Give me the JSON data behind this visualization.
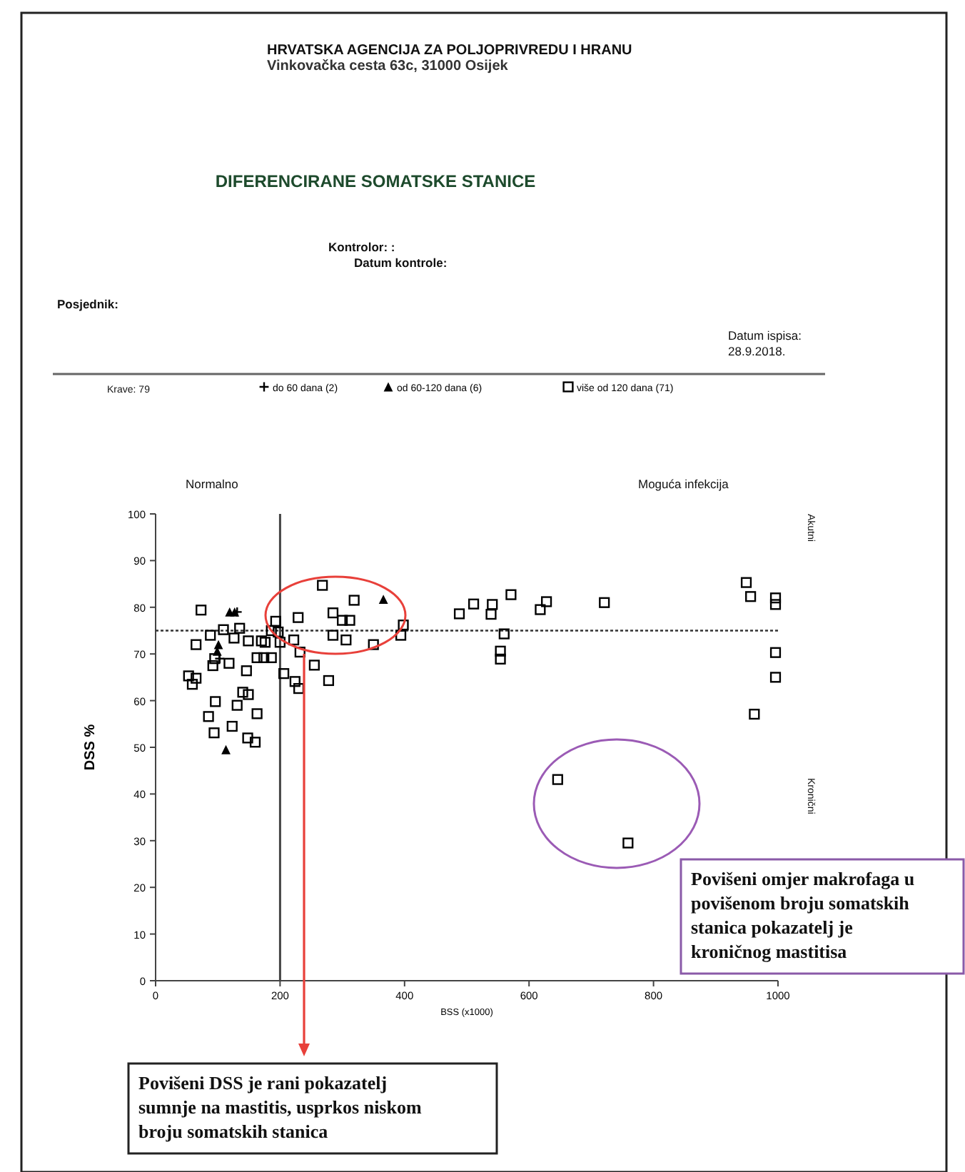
{
  "chart_data": {
    "type": "scatter",
    "title": "DIFERENCIRANE SOMATSKE STANICE",
    "xlabel": "BSS (x1000)",
    "ylabel": "DSS %",
    "xlim": [
      0,
      1000
    ],
    "xticks": [
      0,
      200,
      400,
      600,
      800,
      1000
    ],
    "ylim": [
      0,
      100
    ],
    "yticks": [
      0,
      10,
      20,
      30,
      40,
      50,
      60,
      70,
      80,
      90,
      100
    ],
    "grid": false,
    "legend": "top",
    "series": [
      {
        "name": "do 60 dana (2)",
        "color": "#000000",
        "marker": "cross",
        "x": [
          131,
          103
        ],
        "values": [
          79,
          69
        ]
      },
      {
        "name": "od 60-120 dana (6)",
        "color": "#000000",
        "marker": "triangle",
        "x": [
          119,
          127,
          101,
          113,
          366,
          99
        ],
        "values": [
          79,
          79,
          72,
          49.5,
          81.7,
          70.6
        ]
      },
      {
        "name": "više od 120 dana (71)",
        "color": "#000000",
        "marker": "square",
        "x": [
          73,
          109,
          126,
          149,
          170,
          186,
          193,
          197,
          200,
          222,
          229,
          232,
          268,
          285,
          285,
          300,
          312,
          306,
          319,
          350,
          394,
          398,
          65,
          95,
          163,
          174,
          186,
          146,
          206,
          255,
          224,
          230,
          278,
          53,
          65,
          59,
          140,
          149,
          96,
          131,
          163,
          85,
          123,
          94,
          148,
          160,
          488,
          511,
          541,
          539,
          571,
          560,
          554,
          554,
          618,
          628,
          721,
          949,
          956,
          996,
          996,
          996,
          996,
          962,
          646,
          759,
          135,
          118,
          92,
          176,
          88
        ],
        "values": [
          79.4,
          75.2,
          73.4,
          72.8,
          72.8,
          75,
          77,
          74.7,
          72.5,
          73,
          77.8,
          70.4,
          84.7,
          78.8,
          74,
          77.2,
          77.2,
          73,
          81.5,
          72,
          74,
          76.2,
          72,
          69,
          69.2,
          69.2,
          69.2,
          66.4,
          65.8,
          67.6,
          64.1,
          62.6,
          64.3,
          65.3,
          64.8,
          63.5,
          61.8,
          61.3,
          59.8,
          59,
          57.2,
          56.6,
          54.5,
          53.1,
          52,
          51.1,
          78.6,
          80.7,
          80.6,
          78.5,
          82.7,
          74.3,
          70.6,
          68.9,
          79.5,
          81.2,
          81,
          85.3,
          82.3,
          82,
          80.6,
          70.3,
          65,
          57.1,
          43.1,
          29.5,
          75.5,
          68,
          67.5,
          72.5,
          74
        ]
      }
    ],
    "ref_lines": [
      {
        "axis": "x",
        "value": 200,
        "color": "#444444",
        "line_style": "solid"
      },
      {
        "axis": "y",
        "value": 75,
        "color": "#333333",
        "line_style": "dotted"
      }
    ],
    "annotations": [
      "HRVATSKA AGENCIJA ZA POLJOPRIVREDU I HRANU",
      "Vinkovačka cesta 63c, 31000 Osijek",
      "Kontrolor: :",
      "Datum kontrole:",
      "Posjednik:",
      "Datum ispisa:",
      "28.9.2018.",
      "Krave: 79",
      "Normalno",
      "Moguća infekcija",
      "Akutni",
      "Kronični",
      "Povišeni omjer makrofaga u povišenom broju somatskih stanica pokazatelj je kroničnog mastitisa",
      "Povišeni DSS je rani pokazatelj sumnje na mastitis, usprkos niskom broju somatskih stanica"
    ]
  }
}
